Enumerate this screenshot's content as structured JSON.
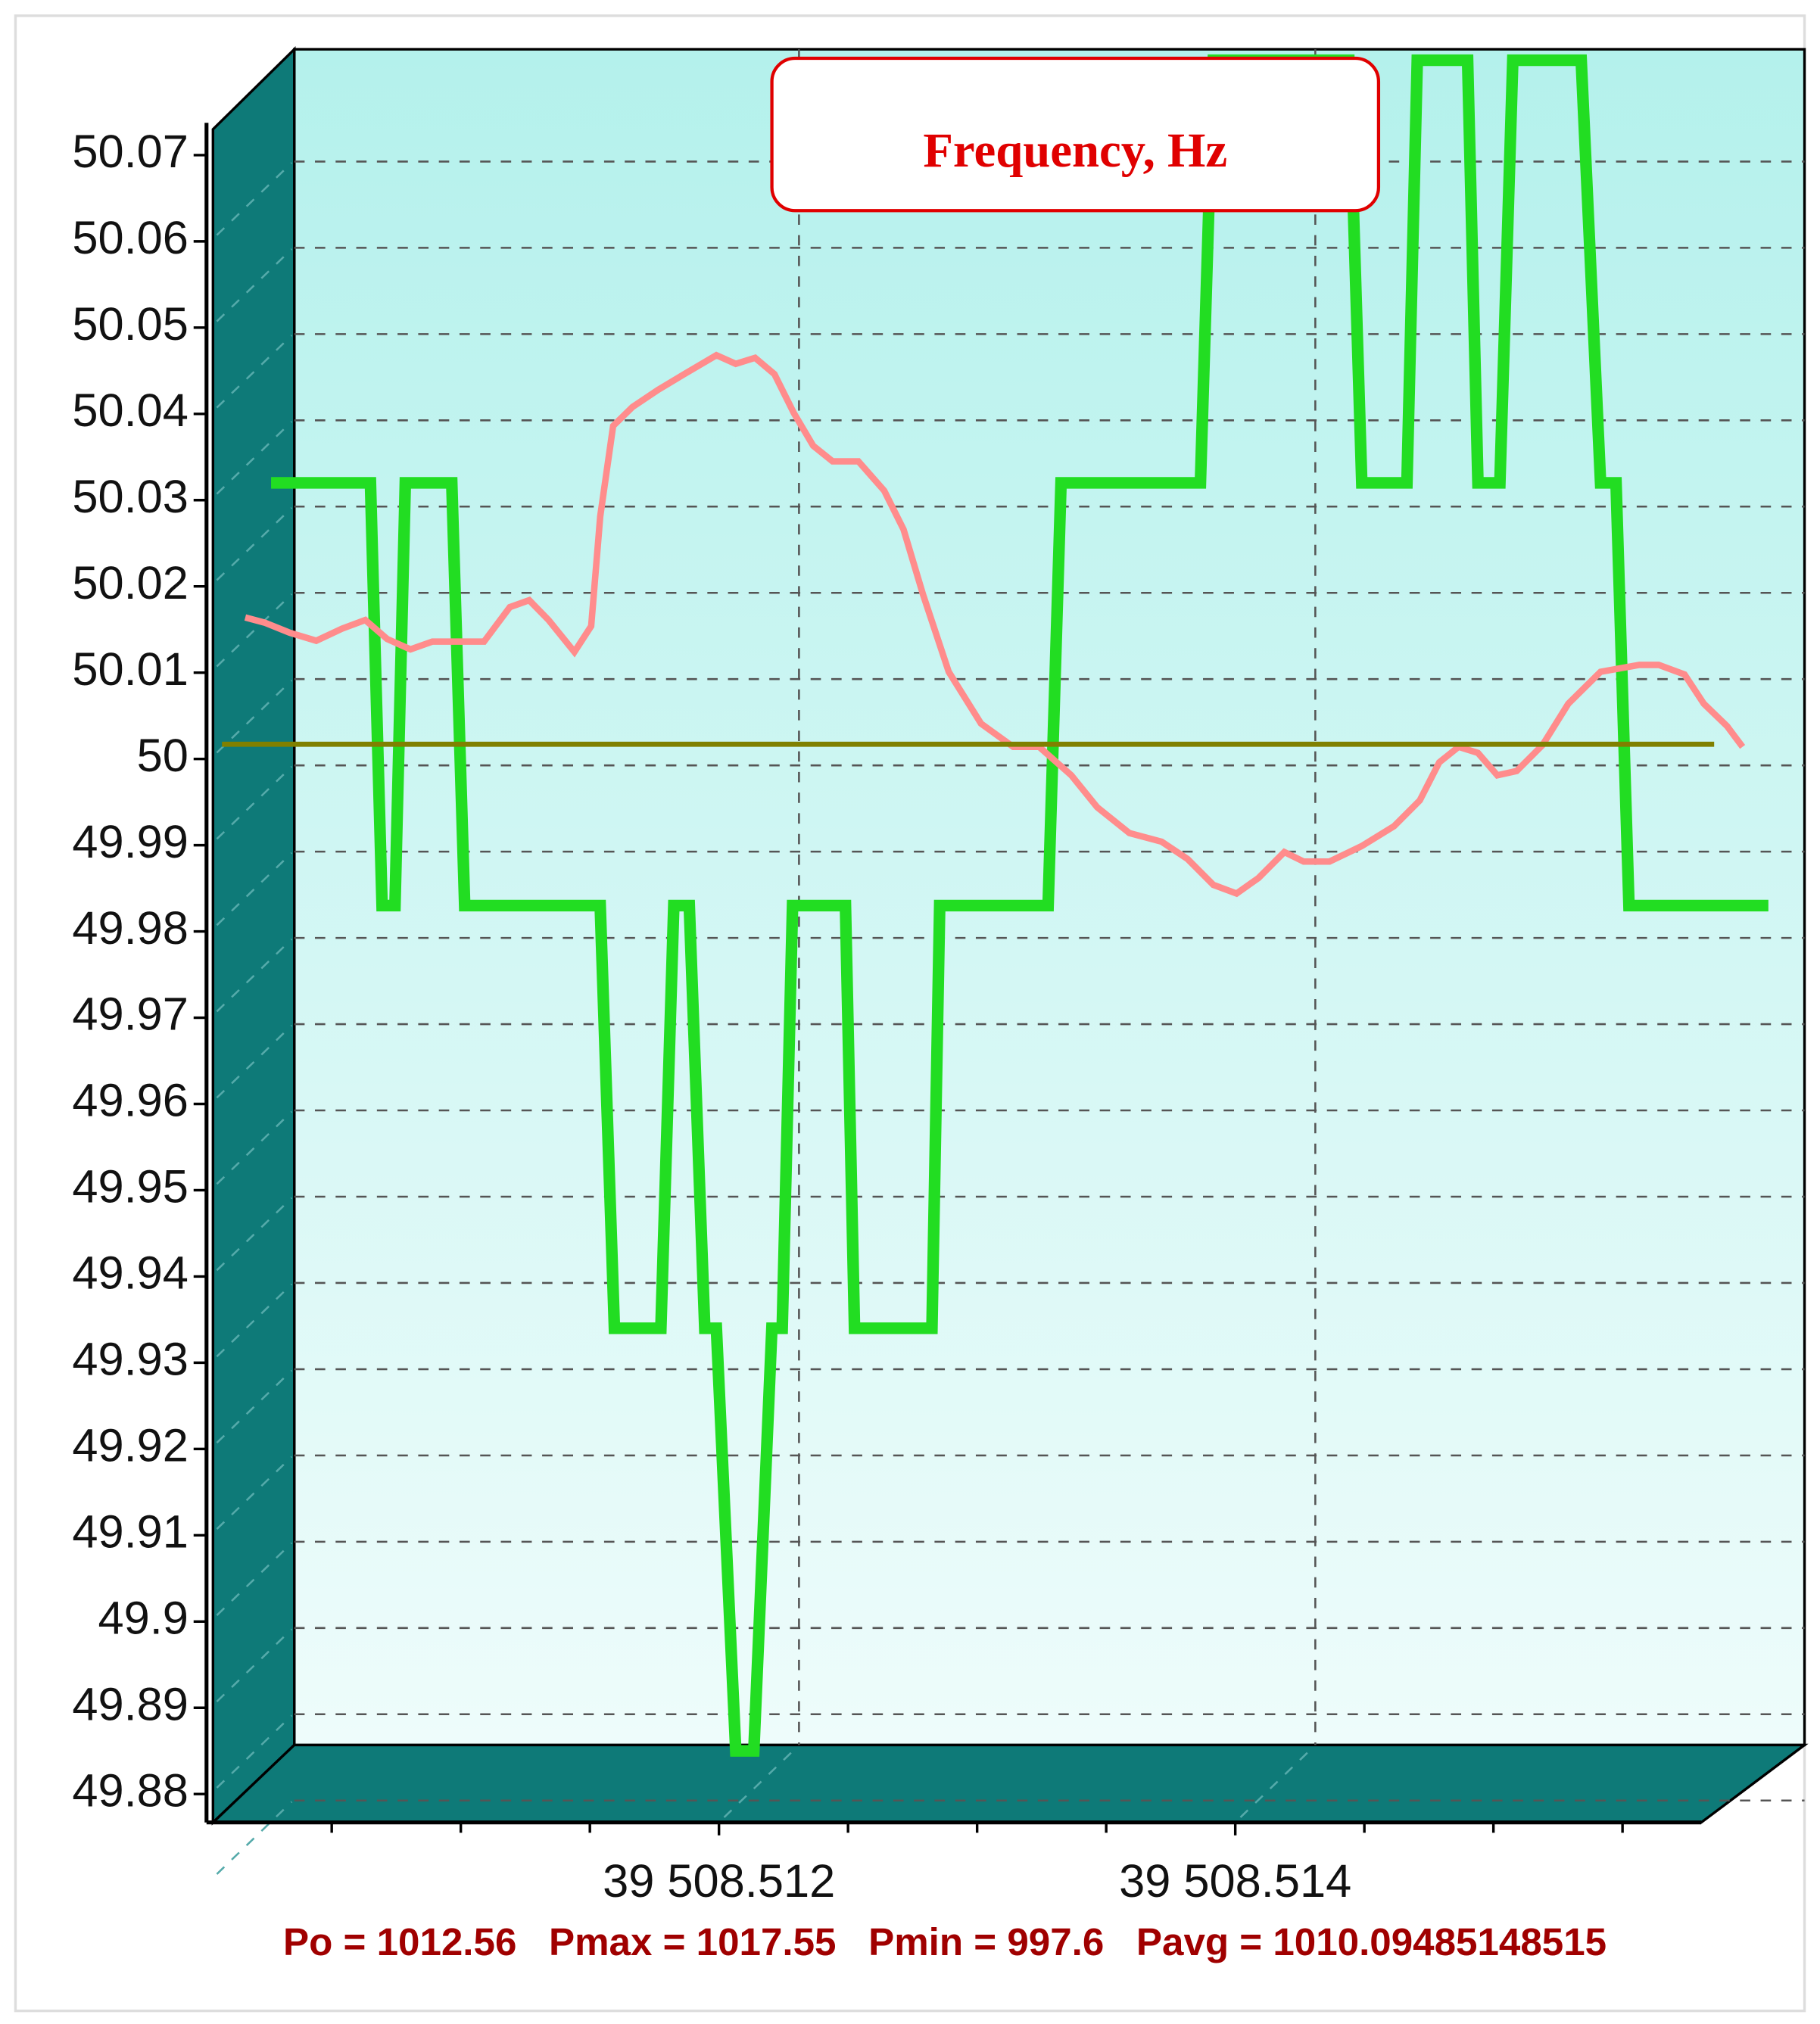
{
  "chart_data": {
    "type": "line",
    "title": "Frequency, Hz",
    "footnote": "Po = 1012.56   Pmax = 1017.55   Pmin = 997.6   Pavg = 1010.09485148515",
    "xlim": [
      39508.51,
      39508.5162
    ],
    "ylim": [
      49.88,
      50.07
    ],
    "xticks": [
      {
        "value": 39508.512,
        "label": "39 508.512"
      },
      {
        "value": 39508.514,
        "label": "39 508.514"
      }
    ],
    "xminorticks": [
      39508.5105,
      39508.511,
      39508.5115,
      39508.5125,
      39508.513,
      39508.5135,
      39508.5145,
      39508.515,
      39508.5155
    ],
    "yticks": [
      50.07,
      50.06,
      50.05,
      50.04,
      50.03,
      50.02,
      50.01,
      50,
      49.99,
      49.98,
      49.97,
      49.96,
      49.95,
      49.94,
      49.93,
      49.92,
      49.91,
      49.9,
      49.89,
      49.88
    ],
    "grid": true,
    "series": [
      {
        "color": "#22dd22",
        "x": [
          39508.510265,
          39508.51065,
          39508.510695,
          39508.510745,
          39508.510785,
          39508.510965,
          39508.511015,
          39508.51154,
          39508.511595,
          39508.511775,
          39508.511825,
          39508.511855,
          39508.511885,
          39508.511945,
          39508.51199,
          39508.512065,
          39508.512135,
          39508.512205,
          39508.512245,
          39508.512285,
          39508.51249,
          39508.512525,
          39508.512825,
          39508.512855,
          39508.513275,
          39508.513325,
          39508.513865,
          39508.513915,
          39508.51444,
          39508.51449,
          39508.514665,
          39508.514705,
          39508.5149,
          39508.51494,
          39508.515025,
          39508.515075,
          39508.51534,
          39508.515415,
          39508.515475,
          39508.515525,
          39508.516065
        ],
        "values": [
          50.032,
          50.032,
          49.983,
          49.983,
          50.032,
          50.032,
          49.983,
          49.983,
          49.934,
          49.934,
          49.983,
          49.983,
          49.983,
          49.934,
          49.934,
          49.885,
          49.885,
          49.934,
          49.934,
          49.983,
          49.983,
          49.934,
          49.934,
          49.983,
          49.983,
          50.032,
          50.032,
          50.081,
          50.081,
          50.032,
          50.032,
          50.081,
          50.081,
          50.032,
          50.032,
          50.081,
          50.081,
          50.032,
          50.032,
          49.983,
          49.983
        ]
      },
      {
        "color": "#ff8c8c",
        "x": [
          39508.510165,
          39508.51024,
          39508.51034,
          39508.51044,
          39508.51054,
          39508.51063,
          39508.510715,
          39508.510805,
          39508.51089,
          39508.51109,
          39508.51119,
          39508.511265,
          39508.51134,
          39508.51144,
          39508.511505,
          39508.51154,
          39508.51159,
          39508.511665,
          39508.511765,
          39508.511865,
          39508.51199,
          39508.512065,
          39508.51214,
          39508.512215,
          39508.51229,
          39508.512365,
          39508.51244,
          39508.51254,
          39508.51264,
          39508.512715,
          39508.51279,
          39508.51289,
          39508.513015,
          39508.51314,
          39508.51324,
          39508.513365,
          39508.513465,
          39508.51359,
          39508.513715,
          39508.513815,
          39508.513915,
          39508.514005,
          39508.51409,
          39508.51419,
          39508.514265,
          39508.514365,
          39508.51449,
          39508.514615,
          39508.514715,
          39508.51479,
          39508.514865,
          39508.51494,
          39508.515015,
          39508.51509,
          39508.51519,
          39508.51529,
          39508.515415,
          39508.515565,
          39508.51564,
          39508.51574,
          39508.515815,
          39508.515905,
          39508.515965
        ],
        "values": [
          50.0164,
          50.0158,
          50.0146,
          50.0137,
          50.0151,
          50.0161,
          50.0139,
          50.0127,
          50.0136,
          50.0136,
          50.0176,
          50.0184,
          50.0161,
          50.0124,
          50.0154,
          50.0281,
          50.0386,
          50.0408,
          50.0428,
          50.0446,
          50.0468,
          50.0458,
          50.0465,
          50.0446,
          50.0401,
          50.0363,
          50.0345,
          50.0345,
          50.0311,
          50.0266,
          50.0191,
          50.0101,
          50.0041,
          50.0014,
          50.0014,
          49.9981,
          49.9944,
          49.9914,
          49.9904,
          49.9884,
          49.9854,
          49.9844,
          49.9862,
          49.9892,
          49.9881,
          49.9881,
          49.9899,
          49.9922,
          49.9952,
          49.9996,
          50.0014,
          50.0007,
          49.9981,
          49.9986,
          50.0016,
          50.0064,
          50.0101,
          50.0109,
          50.0109,
          50.0098,
          50.0064,
          50.0038,
          50.0014
        ]
      },
      {
        "color": "#808000",
        "x": [
          39508.510075,
          39508.515855
        ],
        "values": [
          50.0017,
          50.0017
        ]
      }
    ]
  }
}
